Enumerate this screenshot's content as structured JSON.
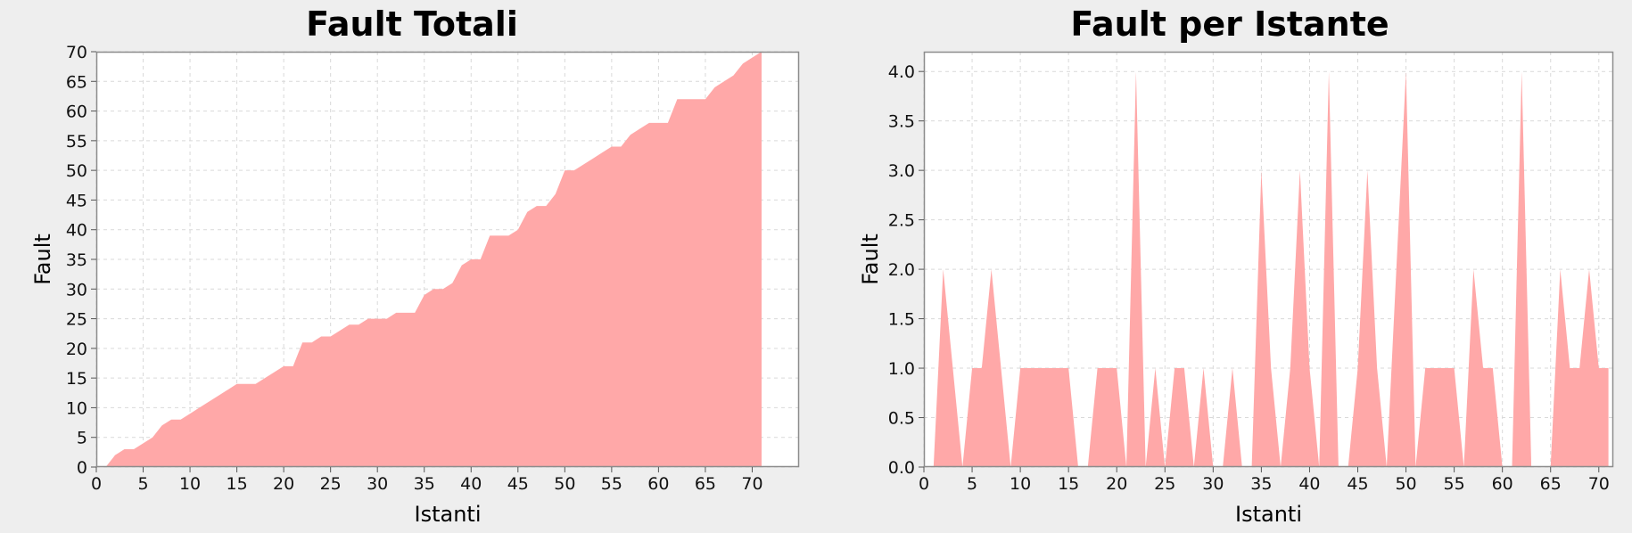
{
  "chart_data": [
    {
      "type": "area",
      "title": "Fault Totali",
      "xlabel": "Istanti",
      "ylabel": "Fault",
      "xlim": [
        0,
        75
      ],
      "ylim": [
        0,
        70
      ],
      "xticks": [
        0,
        5,
        10,
        15,
        20,
        25,
        30,
        35,
        40,
        45,
        50,
        55,
        60,
        65,
        70
      ],
      "yticks": [
        0,
        5,
        10,
        15,
        20,
        25,
        30,
        35,
        40,
        45,
        50,
        55,
        60,
        65,
        70
      ],
      "ytick_decimals": 0,
      "grid": true,
      "fill_color": "#ffa8a8",
      "x": [
        1,
        2,
        3,
        4,
        5,
        6,
        7,
        8,
        9,
        10,
        11,
        12,
        13,
        14,
        15,
        16,
        17,
        18,
        19,
        20,
        21,
        22,
        23,
        24,
        25,
        26,
        27,
        28,
        29,
        30,
        31,
        32,
        33,
        34,
        35,
        36,
        37,
        38,
        39,
        40,
        41,
        42,
        43,
        44,
        45,
        46,
        47,
        48,
        49,
        50,
        51,
        52,
        53,
        54,
        55,
        56,
        57,
        58,
        59,
        60,
        61,
        62,
        63,
        64,
        65,
        66,
        67,
        68,
        69,
        70,
        71
      ],
      "y": [
        0,
        2,
        3,
        3,
        4,
        5,
        7,
        8,
        8,
        9,
        10,
        11,
        12,
        13,
        14,
        14,
        14,
        15,
        16,
        17,
        17,
        21,
        21,
        22,
        22,
        23,
        24,
        24,
        25,
        25,
        25,
        26,
        26,
        26,
        29,
        30,
        30,
        31,
        34,
        35,
        35,
        39,
        39,
        39,
        40,
        43,
        44,
        44,
        46,
        50,
        50,
        51,
        52,
        53,
        54,
        54,
        56,
        57,
        58,
        58,
        58,
        62,
        62,
        62,
        62,
        64,
        65,
        66,
        68,
        69,
        70
      ]
    },
    {
      "type": "area",
      "title": "Fault per Istante",
      "xlabel": "Istanti",
      "ylabel": "Fault",
      "xlim": [
        0,
        71.5
      ],
      "ylim": [
        0,
        4.2
      ],
      "xticks": [
        0,
        5,
        10,
        15,
        20,
        25,
        30,
        35,
        40,
        45,
        50,
        55,
        60,
        65,
        70
      ],
      "yticks": [
        0,
        0.5,
        1.0,
        1.5,
        2.0,
        2.5,
        3.0,
        3.5,
        4.0
      ],
      "ytick_decimals": 1,
      "grid": true,
      "fill_color": "#ffa8a8",
      "x": [
        1,
        2,
        3,
        4,
        5,
        6,
        7,
        8,
        9,
        10,
        11,
        12,
        13,
        14,
        15,
        16,
        17,
        18,
        19,
        20,
        21,
        22,
        23,
        24,
        25,
        26,
        27,
        28,
        29,
        30,
        31,
        32,
        33,
        34,
        35,
        36,
        37,
        38,
        39,
        40,
        41,
        42,
        43,
        44,
        45,
        46,
        47,
        48,
        49,
        50,
        51,
        52,
        53,
        54,
        55,
        56,
        57,
        58,
        59,
        60,
        61,
        62,
        63,
        64,
        65,
        66,
        67,
        68,
        69,
        70,
        71
      ],
      "y": [
        0,
        2,
        1,
        0,
        1,
        1,
        2,
        1,
        0,
        1,
        1,
        1,
        1,
        1,
        1,
        0,
        0,
        1,
        1,
        1,
        0,
        4,
        0,
        1,
        0,
        1,
        1,
        0,
        1,
        0,
        0,
        1,
        0,
        0,
        3,
        1,
        0,
        1,
        3,
        1,
        0,
        4,
        0,
        0,
        1,
        3,
        1,
        0,
        2,
        4,
        0,
        1,
        1,
        1,
        1,
        0,
        2,
        1,
        1,
        0,
        0,
        4,
        0,
        0,
        0,
        2,
        1,
        1,
        2,
        1,
        1
      ]
    }
  ]
}
